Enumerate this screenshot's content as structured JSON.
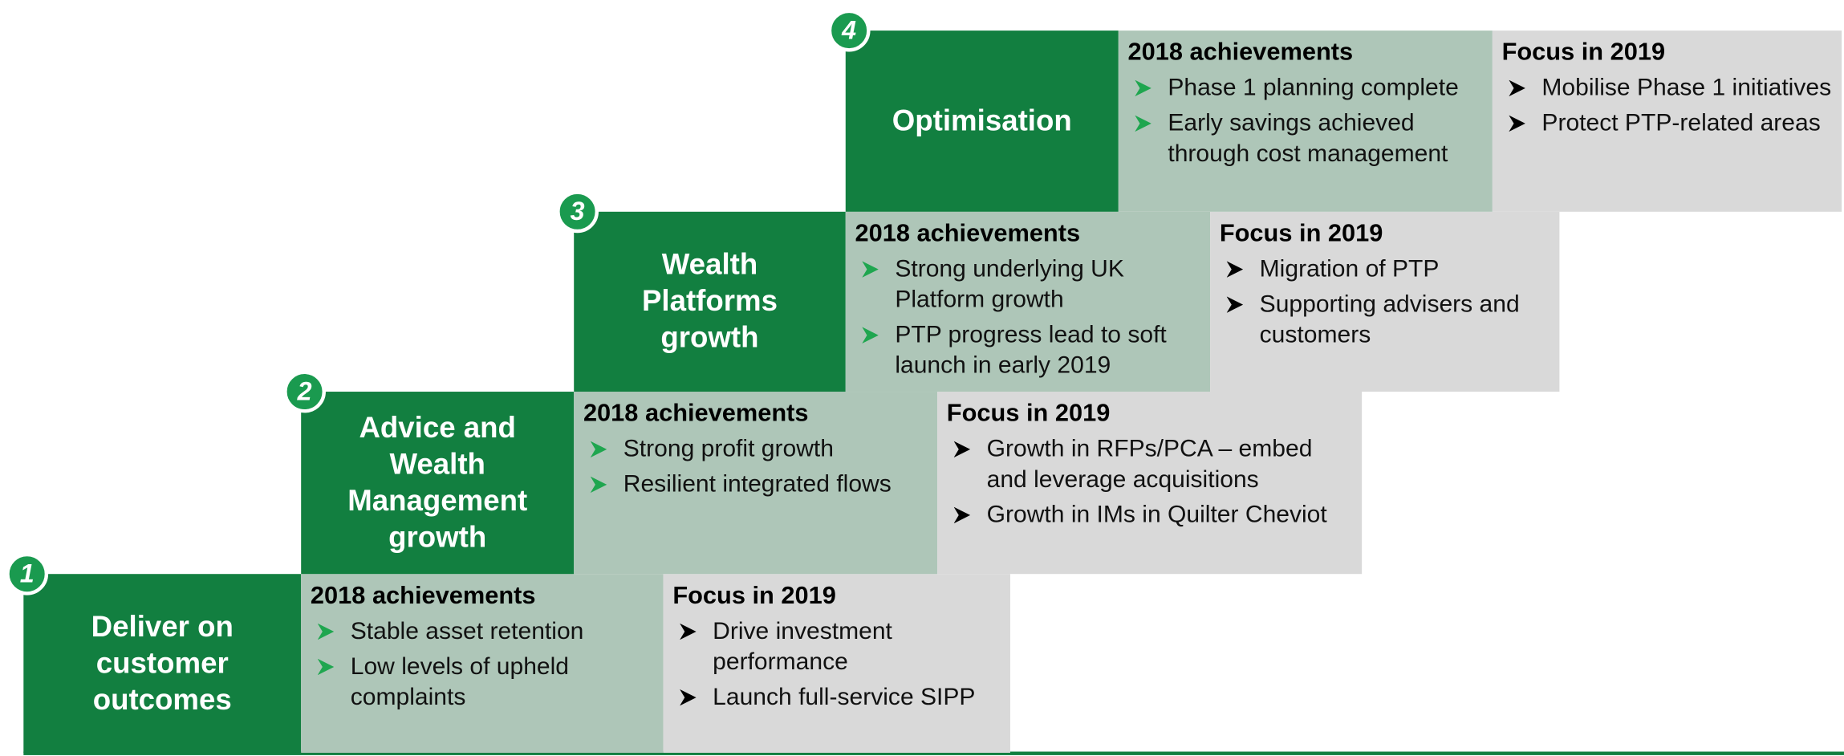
{
  "steps": [
    {
      "number": "1",
      "title": "Deliver on customer outcomes",
      "achievements": {
        "heading": "2018 achievements",
        "items": [
          "Stable asset retention",
          "Low levels of upheld complaints"
        ]
      },
      "focus": {
        "heading": "Focus in 2019",
        "items": [
          "Drive investment performance",
          "Launch full-service SIPP"
        ]
      }
    },
    {
      "number": "2",
      "title": "Advice and Wealth Management growth",
      "achievements": {
        "heading": "2018 achievements",
        "items": [
          "Strong profit growth",
          "Resilient integrated flows"
        ]
      },
      "focus": {
        "heading": "Focus in 2019",
        "items": [
          "Growth in RFPs/PCA – embed and leverage acquisitions",
          "Growth in IMs in Quilter Cheviot"
        ]
      }
    },
    {
      "number": "3",
      "title": "Wealth Platforms growth",
      "achievements": {
        "heading": "2018 achievements",
        "items": [
          "Strong underlying UK Platform growth",
          "PTP progress lead to soft launch in early 2019"
        ]
      },
      "focus": {
        "heading": "Focus in 2019",
        "items": [
          "Migration of PTP",
          "Supporting advisers and customers"
        ]
      }
    },
    {
      "number": "4",
      "title": "Optimisation",
      "achievements": {
        "heading": "2018 achievements",
        "items": [
          "Phase 1 planning complete",
          "Early savings achieved through cost management"
        ]
      },
      "focus": {
        "heading": "Focus in 2019",
        "items": [
          "Mobilise Phase 1 initiatives",
          "Protect PTP-related areas"
        ]
      }
    }
  ]
}
